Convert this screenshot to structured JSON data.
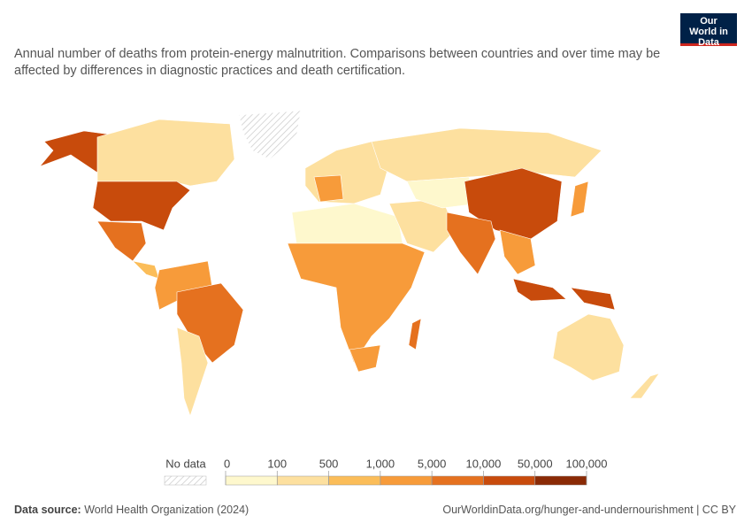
{
  "logo": "Our World in Data",
  "subtitle": "Annual number of deaths from protein-energy malnutrition. Comparisons between countries and over time may be affected by differences in diagnostic practices and death certification.",
  "legend": {
    "no_data": "No data",
    "ticks": [
      0,
      100,
      500,
      {
        "value": 1000,
        "label": "1,000"
      },
      {
        "value": 5000,
        "label": "5,000"
      },
      {
        "value": 10000,
        "label": "10,000"
      },
      {
        "value": 50000,
        "label": "50,000"
      },
      {
        "value": 100000,
        "label": "100,000"
      }
    ],
    "colors": [
      "#fef8cd",
      "#fde09f",
      "#fbbd59",
      "#f79b3a",
      "#e5711f",
      "#c84b0c",
      "#8a2a05"
    ]
  },
  "footer": {
    "source_label": "Data source:",
    "source": "World Health Organization (2024)",
    "url": "OurWorldinData.org/hunger-and-undernourishment | CC BY"
  }
}
